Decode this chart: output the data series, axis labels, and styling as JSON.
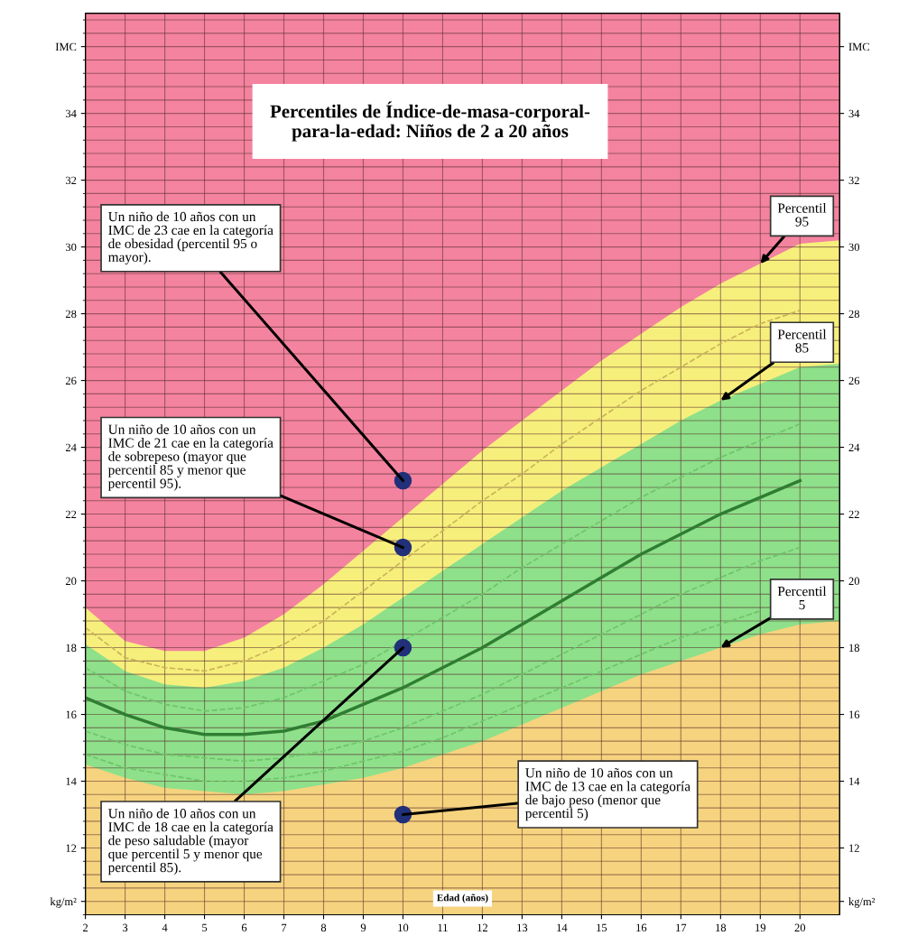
{
  "chart_data": {
    "type": "area",
    "title": "Percentiles de Índice-de-masa-corporal-\npara-la-edad: Niños de 2 a 20 años",
    "xlabel": "Edad (años)",
    "x": [
      2,
      3,
      4,
      5,
      6,
      7,
      8,
      9,
      10,
      11,
      12,
      13,
      14,
      15,
      16,
      17,
      18,
      19,
      20
    ],
    "series": [
      {
        "color": "#f7ef7c",
        "x": [
          2,
          3,
          4,
          5,
          6,
          7,
          8,
          9,
          10,
          11,
          12,
          13,
          14,
          15,
          16,
          17,
          18,
          19,
          20,
          21
        ],
        "values": [
          19.2,
          18.2,
          17.9,
          17.9,
          18.3,
          19.0,
          19.9,
          20.9,
          21.9,
          22.9,
          23.9,
          24.8,
          25.7,
          26.6,
          27.4,
          28.2,
          28.9,
          29.5,
          30.1,
          30.2
        ]
      },
      {
        "color": "#8ee08a",
        "x": [
          2,
          3,
          4,
          5,
          6,
          7,
          8,
          9,
          10,
          11,
          12,
          13,
          14,
          15,
          16,
          17,
          18,
          19,
          20,
          21
        ],
        "values": [
          18.1,
          17.3,
          16.9,
          16.8,
          17.0,
          17.4,
          18.0,
          18.7,
          19.5,
          20.3,
          21.1,
          21.9,
          22.7,
          23.4,
          24.1,
          24.8,
          25.4,
          25.9,
          26.4,
          26.5
        ]
      },
      {
        "color": "#f6d37e",
        "x": [
          2,
          3,
          4,
          5,
          6,
          7,
          8,
          9,
          10,
          11,
          12,
          13,
          14,
          15,
          16,
          17,
          18,
          19,
          20,
          21
        ],
        "values": [
          14.5,
          14.1,
          13.8,
          13.7,
          13.6,
          13.7,
          13.9,
          14.1,
          14.4,
          14.8,
          15.2,
          15.7,
          16.2,
          16.7,
          17.2,
          17.6,
          18.0,
          18.4,
          18.7,
          18.8
        ]
      },
      {
        "type": "line",
        "color": "#6fc46a",
        "line_style": "dashed",
        "values": [
          14.8,
          14.4,
          14.2,
          14.0,
          14.0,
          14.1,
          14.3,
          14.6,
          14.9,
          15.3,
          15.8,
          16.3,
          16.8,
          17.3,
          17.8,
          18.3,
          18.7,
          19.1,
          null
        ]
      },
      {
        "type": "line",
        "color": "#6fc46a",
        "line_style": "dashed",
        "values": [
          15.5,
          15.1,
          14.8,
          14.7,
          14.6,
          14.7,
          14.9,
          15.2,
          15.6,
          16.1,
          16.6,
          17.2,
          17.8,
          18.4,
          19.0,
          19.6,
          20.1,
          20.6,
          21.0
        ]
      },
      {
        "type": "line",
        "color": "#2f7d32",
        "line_style": "solid",
        "values": [
          16.5,
          16.0,
          15.6,
          15.4,
          15.4,
          15.5,
          15.8,
          16.3,
          16.8,
          17.4,
          18.0,
          18.7,
          19.4,
          20.1,
          20.8,
          21.4,
          22.0,
          22.5,
          23.0
        ]
      },
      {
        "type": "line",
        "color": "#6fc46a",
        "line_style": "dashed",
        "values": [
          17.4,
          16.7,
          16.3,
          16.1,
          16.2,
          16.5,
          17.0,
          17.5,
          18.2,
          18.9,
          19.6,
          20.4,
          21.1,
          21.8,
          22.5,
          23.1,
          23.7,
          24.2,
          24.7
        ]
      },
      {
        "type": "line",
        "color": "#c9b35a",
        "line_style": "dashed",
        "values": [
          18.6,
          17.7,
          17.4,
          17.3,
          17.6,
          18.1,
          18.8,
          19.7,
          20.6,
          21.5,
          22.4,
          23.2,
          24.1,
          24.9,
          25.7,
          26.4,
          27.1,
          27.7,
          28.1
        ]
      },
      {
        "type": "scatter",
        "color": "#22307a",
        "marker": "circle",
        "x": [
          10,
          10,
          10,
          10
        ],
        "values": [
          23,
          21,
          18,
          13
        ]
      }
    ],
    "xlim": [
      2,
      21
    ],
    "xticks": [
      2,
      3,
      4,
      5,
      6,
      7,
      8,
      9,
      10,
      11,
      12,
      13,
      14,
      15,
      16,
      17,
      18,
      19,
      20
    ],
    "ylim": [
      10,
      37
    ],
    "yticks": [
      {
        "value": 10.4,
        "label": "kg/m²"
      },
      12,
      14,
      16,
      18,
      20,
      22,
      24,
      26,
      28,
      30,
      32,
      34,
      {
        "value": 36,
        "label": "IMC"
      }
    ],
    "y2lim": [
      10,
      37
    ],
    "y2ticks": [
      {
        "value": 10.4,
        "label": "kg/m²"
      },
      12,
      14,
      16,
      18,
      20,
      22,
      24,
      26,
      28,
      30,
      32,
      34,
      {
        "value": 36,
        "label": "IMC"
      }
    ],
    "grid": true,
    "bands": [
      {
        "axis": "y",
        "from": 10,
        "to": 37,
        "color": "#f4839f"
      }
    ],
    "annotations": [
      {
        "text": "Un niño de 10 años con un\nIMC de 23 cae en la categoría\nde obesidad (percentil 95 o\nmayor).",
        "x": 10,
        "y": 23
      },
      {
        "text": "Un niño de 10 años con un\nIMC de 21 cae en la categoría\nde sobrepeso (mayor que\npercentil 85 y menor que\npercentil 95).",
        "x": 10,
        "y": 21
      },
      {
        "text": "Un niño de 10 años con un\nIMC de 18 cae en la categoría\nde peso saludable (mayor\nque percentil 5 y menor que\npercentil 85).",
        "x": 10,
        "y": 18
      },
      {
        "text": "Un niño de 10 años con un\nIMC de 13 cae en la categoría\nde bajo peso (menor que\npercentil 5)",
        "x": 10,
        "y": 13
      },
      {
        "text": "Percentil\n95",
        "x": 19,
        "y": 29.5
      },
      {
        "text": "Percentil\n85",
        "x": 18,
        "y": 25.4
      },
      {
        "text": "Percentil\n5",
        "x": 18,
        "y": 18.0
      }
    ]
  }
}
